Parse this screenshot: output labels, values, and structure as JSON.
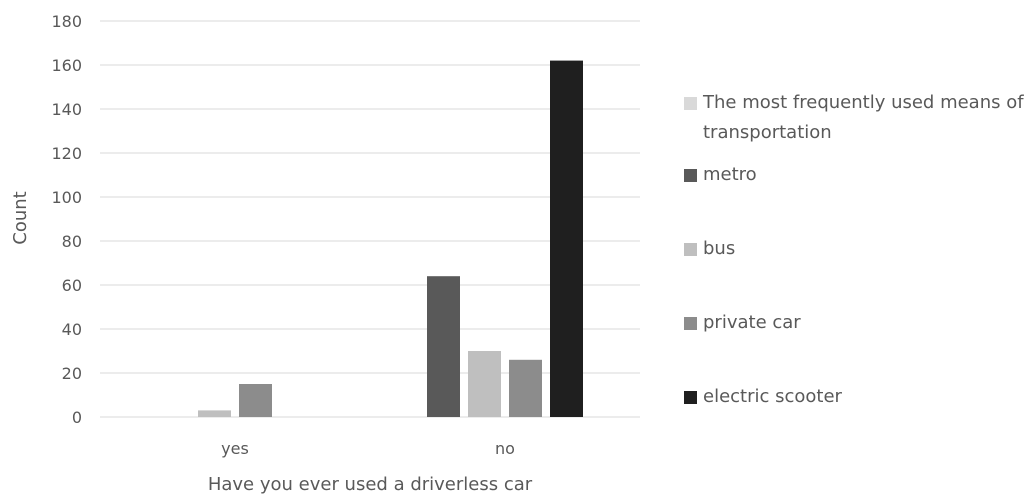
{
  "chart_data": {
    "type": "bar",
    "title": "",
    "xlabel": "Have you ever used a driverless car",
    "ylabel": "Count",
    "ylim": [
      0,
      180
    ],
    "yticks": [
      0,
      20,
      40,
      60,
      80,
      100,
      120,
      140,
      160,
      180
    ],
    "grid": true,
    "legend_position": "right",
    "legend_title": "The most frequently used means of transportation",
    "legend_title_color": "#d9d9d9",
    "categories": [
      "yes",
      "no"
    ],
    "series": [
      {
        "name": "metro",
        "color": "#595959",
        "values": [
          0,
          64
        ]
      },
      {
        "name": "bus",
        "color": "#bfbfbf",
        "values": [
          3,
          30
        ]
      },
      {
        "name": "private car",
        "color": "#8c8c8c",
        "values": [
          15,
          26
        ]
      },
      {
        "name": "electric scooter",
        "color": "#1f1f1f",
        "values": [
          0,
          162
        ]
      }
    ]
  }
}
